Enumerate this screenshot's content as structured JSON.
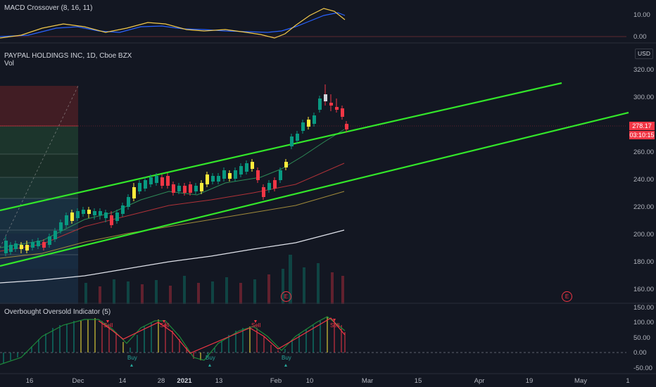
{
  "macd": {
    "label": "MACD Crossover (8, 16, 11)",
    "ticks": [
      "10.00",
      "0.00"
    ]
  },
  "main": {
    "title": "PAYPAL HOLDINGS INC, 1D, Cboe BZX",
    "vol_label": "Vol",
    "currency": "USD",
    "price_ticks": [
      "320.00",
      "300.00",
      "260.00",
      "240.00",
      "220.00",
      "200.00",
      "180.00",
      "160.00"
    ],
    "last_price": "278.17",
    "countdown": "03:10:15",
    "earnings_marker": "E"
  },
  "osc": {
    "label": "Overbought Oversold Indicator (5)",
    "ticks": [
      "150.00",
      "100.00",
      "50.00",
      "0.00",
      "-50.00"
    ],
    "signals": [
      {
        "text": "Sell",
        "color": "#f23645"
      },
      {
        "text": "Sell",
        "color": "#f23645"
      },
      {
        "text": "Sell",
        "color": "#f23645"
      },
      {
        "text": "Sell",
        "color": "#f23645"
      },
      {
        "text": "Buy",
        "color": "#26a69a"
      },
      {
        "text": "Buy",
        "color": "#26a69a"
      },
      {
        "text": "Buy",
        "color": "#26a69a"
      }
    ]
  },
  "time_axis": {
    "ticks": [
      "16",
      "Dec",
      "14",
      "28",
      "2021",
      "13",
      "Feb",
      "10",
      "Mar",
      "15",
      "Apr",
      "19",
      "May",
      "1"
    ]
  },
  "colors": {
    "up": "#089981",
    "down": "#f23645",
    "channel": "#33e62a",
    "highlight": "#ffeb3b",
    "background": "#131722"
  }
}
